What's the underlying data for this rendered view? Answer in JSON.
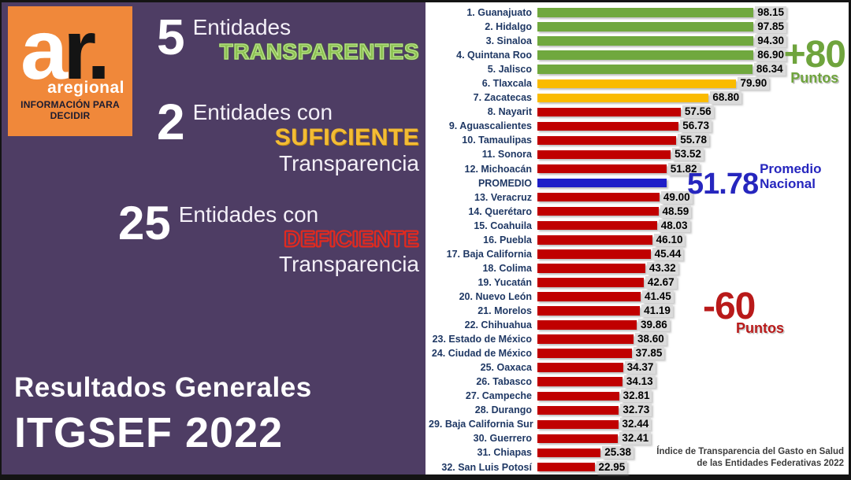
{
  "brand": {
    "logo_a": "a",
    "logo_r": "r.",
    "logo_name": "aregional",
    "logo_tagline": "INFORMACIÓN PARA DECIDIR"
  },
  "summary": [
    {
      "count": "5",
      "line1": "Entidades",
      "highlight": "TRANSPARENTES",
      "line3": ""
    },
    {
      "count": "2",
      "line1": "Entidades con",
      "highlight": "SUFICIENTE",
      "line3": "Transparencia"
    },
    {
      "count": "25",
      "line1": "Entidades con",
      "highlight": "DEFICIENTE",
      "line3": "Transparencia"
    }
  ],
  "title": {
    "line1": "Resultados Generales",
    "line2": "ITGSEF 2022"
  },
  "colors": {
    "panel_purple": "#4E3D64",
    "logo_orange": "#F0883A",
    "green": "#70A83E",
    "yellow": "#FABB00",
    "red": "#C00000",
    "blue": "#1E1EC8",
    "label_navy": "#1F3864"
  },
  "chart_data": {
    "type": "bar",
    "orientation": "horizontal",
    "xlim": [
      0,
      100
    ],
    "title": "ITGSEF 2022 — Resultados Generales",
    "items": [
      {
        "label": "1. Guanajuato",
        "value": 98.15,
        "display": "98.15",
        "color": "green"
      },
      {
        "label": "2. Hidalgo",
        "value": 97.85,
        "display": "97.85",
        "color": "green"
      },
      {
        "label": "3. Sinaloa",
        "value": 94.3,
        "display": "94.30",
        "color": "green"
      },
      {
        "label": "4. Quintana Roo",
        "value": 86.9,
        "display": "86.90",
        "color": "green"
      },
      {
        "label": "5. Jalisco",
        "value": 86.34,
        "display": "86.34",
        "color": "green"
      },
      {
        "label": "6. Tlaxcala",
        "value": 79.9,
        "display": "79.90",
        "color": "yellow"
      },
      {
        "label": "7. Zacatecas",
        "value": 68.8,
        "display": "68.80",
        "color": "yellow"
      },
      {
        "label": "8. Nayarit",
        "value": 57.56,
        "display": "57.56",
        "color": "red"
      },
      {
        "label": "9. Aguascalientes",
        "value": 56.73,
        "display": "56.73",
        "color": "red"
      },
      {
        "label": "10. Tamaulipas",
        "value": 55.78,
        "display": "55.78",
        "color": "red"
      },
      {
        "label": "11. Sonora",
        "value": 53.52,
        "display": "53.52",
        "color": "red"
      },
      {
        "label": "12. Michoacán",
        "value": 51.82,
        "display": "51.82",
        "color": "red"
      },
      {
        "label": "PROMEDIO",
        "value": 51.78,
        "display": "",
        "color": "blue"
      },
      {
        "label": "13. Veracruz",
        "value": 49.0,
        "display": "49.00",
        "color": "red"
      },
      {
        "label": "14. Querétaro",
        "value": 48.59,
        "display": "48.59",
        "color": "red"
      },
      {
        "label": "15. Coahuila",
        "value": 48.03,
        "display": "48.03",
        "color": "red"
      },
      {
        "label": "16. Puebla",
        "value": 46.1,
        "display": "46.10",
        "color": "red"
      },
      {
        "label": "17. Baja California",
        "value": 45.44,
        "display": "45.44",
        "color": "red"
      },
      {
        "label": "18. Colima",
        "value": 43.32,
        "display": "43.32",
        "color": "red"
      },
      {
        "label": "19. Yucatán",
        "value": 42.67,
        "display": "42.67",
        "color": "red"
      },
      {
        "label": "20. Nuevo León",
        "value": 41.45,
        "display": "41.45",
        "color": "red"
      },
      {
        "label": "21. Morelos",
        "value": 41.19,
        "display": "41.19",
        "color": "red"
      },
      {
        "label": "22. Chihuahua",
        "value": 39.86,
        "display": "39.86",
        "color": "red"
      },
      {
        "label": "23. Estado de México",
        "value": 38.6,
        "display": "38.60",
        "color": "red"
      },
      {
        "label": "24. Ciudad de México",
        "value": 37.85,
        "display": "37.85",
        "color": "red"
      },
      {
        "label": "25. Oaxaca",
        "value": 34.37,
        "display": "34.37",
        "color": "red"
      },
      {
        "label": "26. Tabasco",
        "value": 34.13,
        "display": "34.13",
        "color": "red"
      },
      {
        "label": "27. Campeche",
        "value": 32.81,
        "display": "32.81",
        "color": "red"
      },
      {
        "label": "28. Durango",
        "value": 32.73,
        "display": "32.73",
        "color": "red"
      },
      {
        "label": "29. Baja California Sur",
        "value": 32.44,
        "display": "32.44",
        "color": "red"
      },
      {
        "label": "30. Guerrero",
        "value": 32.41,
        "display": "32.41",
        "color": "red"
      },
      {
        "label": "31. Chiapas",
        "value": 25.38,
        "display": "25.38",
        "color": "red"
      },
      {
        "label": "32. San Luis Potosí",
        "value": 22.95,
        "display": "22.95",
        "color": "red"
      }
    ],
    "annotations": {
      "plus": {
        "big": "+80",
        "small": "Puntos"
      },
      "promedio": {
        "big": "51.78",
        "label1": "Promedio",
        "label2": "Nacional"
      },
      "minus": {
        "big": "-60",
        "small": "Puntos"
      }
    },
    "footnote": {
      "line1": "Índice de Transparencia del Gasto en Salud",
      "line2": "de las Entidades Federativas 2022"
    }
  }
}
